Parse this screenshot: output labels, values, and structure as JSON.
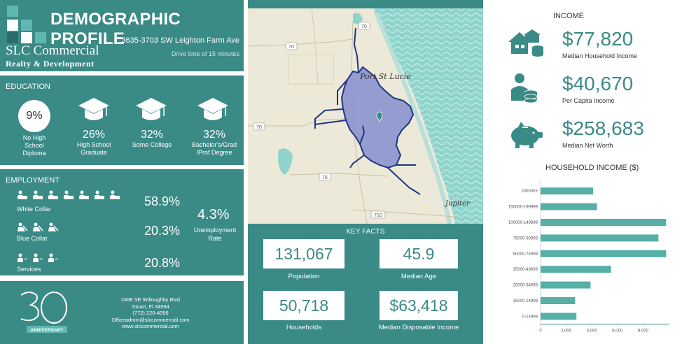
{
  "header": {
    "title": "DEMOGRAPHIC PROFILE",
    "company": "SLC Commercial",
    "company_sub": "Realty & Development",
    "address": "3635-3703 SW Leighton Farm Ave",
    "drive_time": "Drive time of 15 minutes"
  },
  "education": {
    "title": "EDUCATION",
    "items": [
      {
        "pct": "9%",
        "label_lines": [
          "No High",
          "School",
          "Diploma"
        ]
      },
      {
        "pct": "26%",
        "label_lines": [
          "High School",
          "Graduate"
        ]
      },
      {
        "pct": "32%",
        "label_lines": [
          "Some College"
        ]
      },
      {
        "pct": "32%",
        "label_lines": [
          "Bachelor's/Grad",
          "/Prof Degree"
        ]
      }
    ]
  },
  "employment": {
    "title": "EMPLOYMENT",
    "white_collar_label": "White Collar",
    "white_collar_pct": "58.9%",
    "blue_collar_label": "Blue Collar",
    "blue_collar_pct": "20.3%",
    "services_label": "Services",
    "services_pct": "20.8%",
    "unemployment_pct": "4.3%",
    "unemployment_label_1": "Unemployment",
    "unemployment_label_2": "Rate"
  },
  "footer": {
    "anniversary": "ANNIVERSARY",
    "address_1": "2488 SE Willoughby Blvd",
    "address_2": "Stuart, Fl 34994",
    "phone": "(772) 220-4096",
    "email": "Officeadmin@slccommercial.com",
    "website": "www.slccommercial.com"
  },
  "map": {
    "city_1": "Port St Lucie",
    "city_2": "Jupiter",
    "roads": [
      "70",
      "70",
      "70",
      "76",
      "710"
    ]
  },
  "key_facts": {
    "title": "KEY FACTS",
    "population": "131,067",
    "population_label": "Population",
    "median_age": "45.9",
    "median_age_label": "Median Age",
    "households": "50,718",
    "households_label": "Households",
    "median_disposable_income": "$63,418",
    "median_disposable_income_label": "Median Disposable Income"
  },
  "income": {
    "title": "INCOME",
    "median_household_income": "$77,820",
    "median_household_income_label": "Median Household Income",
    "per_capita_income": "$40,670",
    "per_capita_income_label": "Per Capita Income",
    "median_net_worth": "$258,683",
    "median_net_worth_label": "Median Net Worth"
  },
  "colors": {
    "teal": "#3a8a86",
    "bar": "#56b0a6",
    "map_polygon": "#8a94cf",
    "map_road": "#1f3582"
  },
  "chart_data": {
    "type": "bar",
    "orientation": "horizontal",
    "title": "HOUSEHOLD INCOME ($)",
    "categories": [
      "200000+",
      "150000-199999",
      "100000-149999",
      "75000-99999",
      "50000-74999",
      "35000-49999",
      "25000-34999",
      "15000-24999",
      "0-14999"
    ],
    "values": [
      4100,
      4400,
      9800,
      9200,
      9800,
      5500,
      3900,
      2700,
      2800
    ],
    "xlim": [
      0,
      10000
    ],
    "xticks": [
      "0",
      "2,000",
      "4,000",
      "6,000",
      "8,000"
    ],
    "xtick_values": [
      0,
      2000,
      4000,
      6000,
      8000
    ],
    "grid": false
  }
}
